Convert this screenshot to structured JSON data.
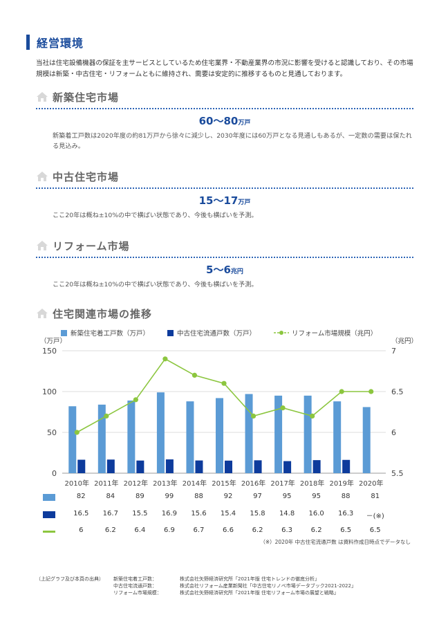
{
  "title": "経営環境",
  "intro": "当社は住宅設備機器の保証を主サービスとしているため住宅業界・不動産業界の市況に影響を受けると認識しており、その市場規模は新築・中古住宅・リフォームともに維持され、需要は安定的に推移するものと見通しております。",
  "sections": [
    {
      "heading": "新築住宅市場",
      "value": "60～80",
      "unit": "万戸",
      "desc": "新築着工戸数は2020年度の約81万戸から徐々に減少し、2030年度には60万戸となる見通しもあるが、一定数の需要は保たれる見込み。"
    },
    {
      "heading": "中古住宅市場",
      "value": "15～17",
      "unit": "万戸",
      "desc": "ここ20年は概ね±10%の中で横ばい状態であり、今後も横ばいを予測。"
    },
    {
      "heading": "リフォーム市場",
      "value": "5～6",
      "unit": "兆円",
      "desc": "ここ20年は概ね±10%の中で横ばい状態であり、今後も横ばいを予測。"
    }
  ],
  "chart_heading": "住宅関連市場の推移",
  "colors": {
    "new": "#5b9bd5",
    "used": "#0d3b9c",
    "reform": "#8cc63f",
    "accent": "#1a4b9c"
  },
  "chart_data": {
    "type": "bar",
    "categories": [
      "2010年",
      "2011年",
      "2012年",
      "2013年",
      "2014年",
      "2015年",
      "2016年",
      "2017年",
      "2018年",
      "2019年",
      "2020年"
    ],
    "series": [
      {
        "name": "新築住宅着工戸数（万戸）",
        "type": "bar",
        "axis": "left",
        "values": [
          82,
          84,
          89,
          99,
          88,
          92,
          97,
          95,
          95,
          88,
          81
        ]
      },
      {
        "name": "中古住宅流通戸数（万戸）",
        "type": "bar",
        "axis": "left",
        "values": [
          16.5,
          16.7,
          15.5,
          16.9,
          15.6,
          15.4,
          15.8,
          14.8,
          16.0,
          16.3,
          null
        ]
      },
      {
        "name": "リフォーム市場規模（兆円）",
        "type": "line",
        "axis": "right",
        "values": [
          6,
          6.2,
          6.4,
          6.9,
          6.7,
          6.6,
          6.2,
          6.3,
          6.2,
          6.5,
          6.5
        ]
      }
    ],
    "left_axis": {
      "label": "（万戸）",
      "range": [
        0,
        150
      ],
      "ticks": [
        "0",
        "50",
        "100",
        "150"
      ]
    },
    "right_axis": {
      "label": "（兆円）",
      "range": [
        5.5,
        7
      ],
      "ticks": [
        "5.5",
        "6",
        "6.5",
        "7"
      ]
    },
    "table_rows": [
      [
        "82",
        "84",
        "89",
        "99",
        "88",
        "92",
        "97",
        "95",
        "95",
        "88",
        "81"
      ],
      [
        "16.5",
        "16.7",
        "15.5",
        "16.9",
        "15.6",
        "15.4",
        "15.8",
        "14.8",
        "16.0",
        "16.3",
        "－(※)"
      ],
      [
        "6",
        "6.2",
        "6.4",
        "6.9",
        "6.7",
        "6.6",
        "6.2",
        "6.3",
        "6.2",
        "6.5",
        "6.5"
      ]
    ],
    "grid": true,
    "legend": "top"
  },
  "note": "（※）2020年 中古住宅流通戸数 は資料作成日時点でデータなし",
  "sources": {
    "label": "（上記グラフ及び本頁の出典）",
    "rows": [
      {
        "k": "新築住宅着工戸数：",
        "v": "株式会社矢野経済研究所「2021年版 住宅トレンドの徹底分析」"
      },
      {
        "k": "中古住宅流通戸数：",
        "v": "株式会社リフォーム産業新聞社「中古住宅リノベ市場データブック2021-2022」"
      },
      {
        "k": "リフォーム市場規模：",
        "v": "株式会社矢野経済研究所「2021年版 住宅リフォーム市場の展望と戦略」"
      }
    ]
  }
}
